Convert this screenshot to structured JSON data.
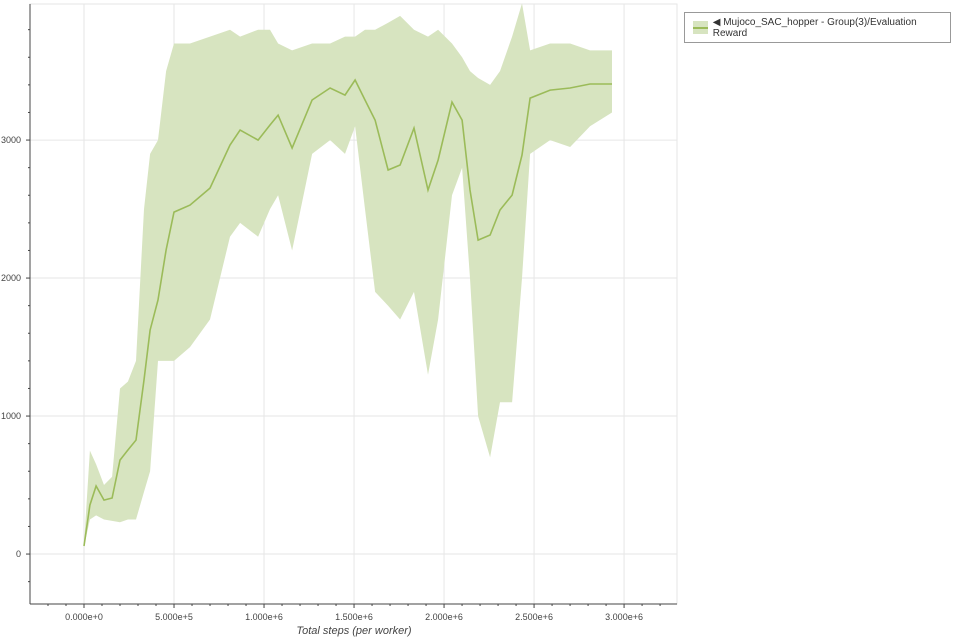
{
  "chart_data": {
    "type": "line",
    "title": "",
    "xlabel": "Total steps (per worker)",
    "ylabel": "",
    "xlim": [
      -300000,
      3294000
    ],
    "ylim": [
      -362,
      3986
    ],
    "x_ticks": [
      0,
      500000,
      1000000,
      1500000,
      2000000,
      2500000,
      3000000
    ],
    "x_tick_labels": [
      "0.000e+0",
      "5.000e+5",
      "1.000e+6",
      "1.500e+6",
      "2.000e+6",
      "2.500e+6",
      "3.000e+6"
    ],
    "y_ticks": [
      0,
      1000,
      2000,
      3000
    ],
    "y_tick_labels": [
      "0",
      "1000",
      "2000",
      "3000"
    ],
    "grid": true,
    "legend_position": "outside-top-right",
    "colors": {
      "line": "#9bbb59",
      "band": "#d7e4c0"
    },
    "series": [
      {
        "name": "◀ Mujoco_SAC_hopper - Group(3)/Evaluation Reward",
        "x": [
          0,
          33000,
          67000,
          111000,
          156000,
          200000,
          244000,
          289000,
          333000,
          367000,
          411000,
          456000,
          500000,
          589000,
          700000,
          811000,
          867000,
          967000,
          1033000,
          1078000,
          1156000,
          1267000,
          1367000,
          1450000,
          1506000,
          1561000,
          1617000,
          1689000,
          1756000,
          1833000,
          1911000,
          1967000,
          2044000,
          2100000,
          2144000,
          2189000,
          2256000,
          2311000,
          2378000,
          2433000,
          2478000,
          2589000,
          2700000,
          2811000,
          2933000
        ],
        "mean": [
          58,
          355,
          493,
          391,
          406,
          681,
          754,
          826,
          1261,
          1623,
          1841,
          2203,
          2478,
          2529,
          2652,
          2964,
          3072,
          3000,
          3109,
          3181,
          2942,
          3290,
          3377,
          3326,
          3435,
          3290,
          3145,
          2783,
          2819,
          3087,
          2638,
          2855,
          3275,
          3145,
          2638,
          2275,
          2312,
          2493,
          2601,
          2891,
          3304,
          3362,
          3377,
          3406,
          3406
        ],
        "lower": [
          50,
          250,
          280,
          250,
          240,
          230,
          250,
          250,
          450,
          600,
          1400,
          1400,
          1400,
          1500,
          1700,
          2300,
          2400,
          2300,
          2500,
          2600,
          2200,
          2900,
          3000,
          2900,
          3100,
          2500,
          1900,
          1800,
          1700,
          1900,
          1300,
          1700,
          2600,
          2800,
          2000,
          1000,
          700,
          1100,
          1100,
          2000,
          2900,
          3000,
          2950,
          3100,
          3200
        ],
        "upper": [
          70,
          750,
          650,
          500,
          560,
          1200,
          1250,
          1400,
          2500,
          2900,
          3000,
          3500,
          3700,
          3700,
          3750,
          3800,
          3750,
          3800,
          3800,
          3700,
          3650,
          3700,
          3700,
          3750,
          3750,
          3800,
          3800,
          3850,
          3900,
          3800,
          3750,
          3800,
          3700,
          3600,
          3500,
          3450,
          3400,
          3500,
          3750,
          3990,
          3650,
          3700,
          3700,
          3650,
          3650
        ]
      }
    ]
  }
}
